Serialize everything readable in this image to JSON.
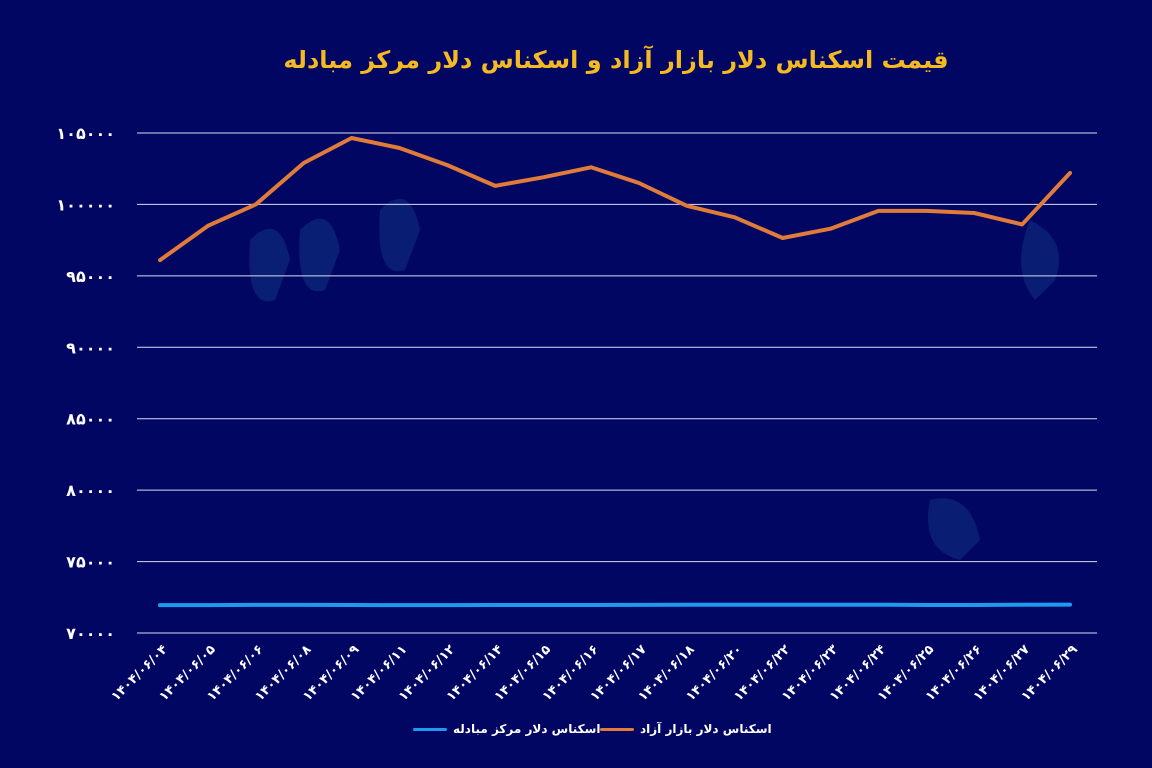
{
  "chart_data": {
    "type": "line",
    "title": "قیمت اسکناس دلار بازار آزاد و اسکناس دلار مرکز مبادله",
    "xlabel": "",
    "ylabel": "",
    "ylim": [
      70000,
      105000
    ],
    "yticks": [
      70000,
      75000,
      80000,
      85000,
      90000,
      95000,
      100000,
      105000
    ],
    "ytick_labels": [
      "۷۰۰۰۰",
      "۷۵۰۰۰",
      "۸۰۰۰۰",
      "۸۵۰۰۰",
      "۹۰۰۰۰",
      "۹۵۰۰۰",
      "۱۰۰۰۰۰",
      "۱۰۵۰۰۰"
    ],
    "grid": true,
    "legend_position": "bottom",
    "categories": [
      "۱۴۰۴/۰۶/۰۴",
      "۱۴۰۴/۰۶/۰۵",
      "۱۴۰۴/۰۶/۰۶",
      "۱۴۰۴/۰۶/۰۸",
      "۱۴۰۴/۰۶/۰۹",
      "۱۴۰۴/۰۶/۱۱",
      "۱۴۰۴/۰۶/۱۲",
      "۱۴۰۴/۰۶/۱۴",
      "۱۴۰۴/۰۶/۱۵",
      "۱۴۰۴/۰۶/۱۶",
      "۱۴۰۴/۰۶/۱۷",
      "۱۴۰۴/۰۶/۱۸",
      "۱۴۰۴/۰۶/۲۰",
      "۱۴۰۴/۰۶/۲۲",
      "۱۴۰۴/۰۶/۲۳",
      "۱۴۰۴/۰۶/۲۴",
      "۱۴۰۴/۰۶/۲۵",
      "۱۴۰۴/۰۶/۲۶",
      "۱۴۰۴/۰۶/۲۷",
      "۱۴۰۴/۰۶/۲۹"
    ],
    "series": [
      {
        "name": "اسکناس دلار بازار آزاد",
        "color": "#e07b39",
        "values": [
          96100,
          98500,
          100000,
          102900,
          104650,
          103950,
          102750,
          101300,
          101900,
          102600,
          101500,
          99900,
          99100,
          97650,
          98300,
          99550,
          99550,
          99400,
          98600,
          102200
        ]
      },
      {
        "name": "اسکناس دلار مرکز مبادله",
        "color": "#1e9bf0",
        "values": [
          71950,
          71950,
          71970,
          71970,
          71960,
          71950,
          71950,
          71960,
          71960,
          71960,
          71970,
          71980,
          71980,
          71980,
          71980,
          71980,
          71960,
          71960,
          71980,
          71990
        ]
      }
    ]
  }
}
